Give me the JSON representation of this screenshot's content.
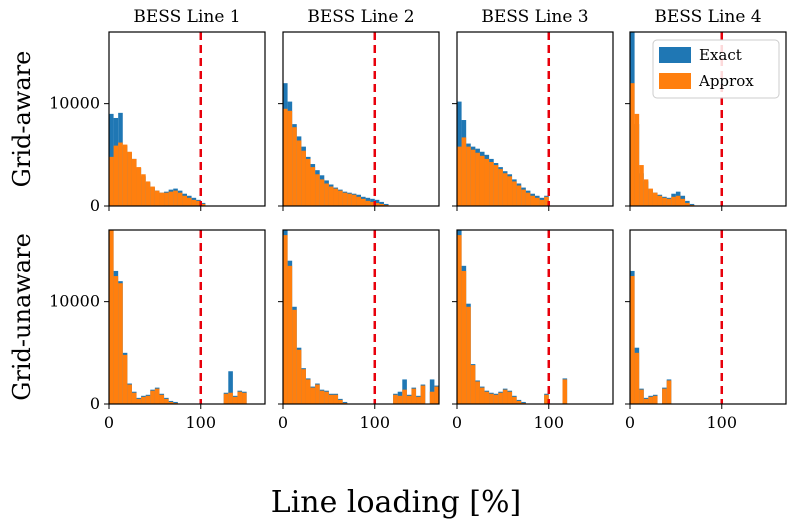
{
  "chart_data": {
    "type": "bar",
    "title": "",
    "xlabel": "Line loading [%]",
    "ylabel": "",
    "xlim": [
      0,
      170
    ],
    "ylim": [
      0,
      17000
    ],
    "x_ticks": [
      0,
      100
    ],
    "y_ticks": [
      0,
      10000
    ],
    "bin_width": 5,
    "threshold": 100,
    "colors": {
      "exact": "#1f77b4",
      "approx": "#ff7f0e",
      "threshold": "#e8000b"
    },
    "legend": {
      "placement": "top-right",
      "entries": [
        "Exact",
        "Approx"
      ]
    },
    "columns": [
      "BESS Line 1",
      "BESS Line 2",
      "BESS Line 3",
      "BESS Line 4"
    ],
    "rows": [
      "Grid-aware",
      "Grid-unaware"
    ],
    "panels": [
      {
        "row": "Grid-aware",
        "column": "BESS Line 1",
        "x": [
          0,
          5,
          10,
          15,
          20,
          25,
          30,
          35,
          40,
          45,
          50,
          55,
          60,
          65,
          70,
          75,
          80,
          85,
          90,
          95,
          100
        ],
        "exact": [
          9000,
          8600,
          9100,
          5900,
          5200,
          4600,
          3700,
          2900,
          2300,
          1800,
          1500,
          1300,
          1400,
          1600,
          1700,
          1500,
          1200,
          1000,
          800,
          600,
          300
        ],
        "approx": [
          4800,
          5900,
          6200,
          6000,
          5300,
          4600,
          3800,
          3100,
          2400,
          1900,
          1500,
          1300,
          1300,
          1400,
          1500,
          1300,
          1000,
          800,
          600,
          500,
          200
        ]
      },
      {
        "row": "Grid-aware",
        "column": "BESS Line 2",
        "x": [
          0,
          5,
          10,
          15,
          20,
          25,
          30,
          35,
          40,
          45,
          50,
          55,
          60,
          65,
          70,
          75,
          80,
          85,
          90,
          95,
          100,
          105,
          110
        ],
        "exact": [
          12000,
          10200,
          8000,
          6800,
          5800,
          4800,
          4100,
          3500,
          3000,
          2500,
          2100,
          1800,
          1600,
          1400,
          1300,
          1200,
          1100,
          900,
          800,
          700,
          600,
          400,
          200
        ],
        "approx": [
          9500,
          9300,
          7700,
          6400,
          5400,
          4600,
          3800,
          3100,
          2600,
          2200,
          1900,
          1700,
          1500,
          1300,
          1200,
          1100,
          900,
          700,
          500,
          400,
          300,
          200,
          100
        ]
      },
      {
        "row": "Grid-aware",
        "column": "BESS Line 3",
        "x": [
          0,
          5,
          10,
          15,
          20,
          25,
          30,
          35,
          40,
          45,
          50,
          55,
          60,
          65,
          70,
          75,
          80,
          85,
          90,
          95
        ],
        "exact": [
          10200,
          8400,
          6100,
          5800,
          5600,
          5300,
          5000,
          4600,
          4200,
          3800,
          3400,
          3100,
          2600,
          2200,
          1800,
          1500,
          1200,
          1000,
          800,
          1000
        ],
        "approx": [
          5800,
          6700,
          5800,
          5500,
          5200,
          4900,
          4600,
          4300,
          4000,
          3600,
          3200,
          2900,
          2400,
          2000,
          1600,
          1300,
          1000,
          800,
          600,
          900
        ]
      },
      {
        "row": "Grid-aware",
        "column": "BESS Line 4",
        "x": [
          0,
          5,
          10,
          15,
          20,
          25,
          30,
          35,
          40,
          45,
          50,
          55,
          60,
          65
        ],
        "exact": [
          17000,
          8000,
          3200,
          2400,
          1600,
          1300,
          1100,
          900,
          800,
          1200,
          1400,
          1000,
          500,
          200
        ],
        "approx": [
          12000,
          9000,
          4000,
          2600,
          1700,
          1300,
          1000,
          800,
          700,
          900,
          1000,
          700,
          300,
          100
        ]
      },
      {
        "row": "Grid-unaware",
        "column": "BESS Line 1",
        "x": [
          0,
          5,
          10,
          15,
          20,
          25,
          30,
          35,
          40,
          45,
          50,
          55,
          60,
          65,
          70,
          75,
          80,
          85,
          90,
          95,
          100,
          105,
          110,
          115,
          120,
          125,
          130,
          135,
          140,
          145
        ],
        "exact": [
          17000,
          13000,
          12000,
          5000,
          2000,
          1200,
          600,
          800,
          900,
          1400,
          1600,
          1000,
          600,
          300,
          200,
          0,
          0,
          0,
          0,
          0,
          0,
          0,
          0,
          0,
          0,
          1100,
          3200,
          800,
          1300,
          1200
        ],
        "approx": [
          17000,
          12500,
          11800,
          4800,
          1900,
          1100,
          500,
          700,
          800,
          1300,
          1500,
          900,
          500,
          200,
          100,
          0,
          0,
          0,
          0,
          0,
          0,
          0,
          0,
          0,
          0,
          1000,
          1100,
          700,
          1200,
          1100
        ]
      },
      {
        "row": "Grid-unaware",
        "column": "BESS Line 2",
        "x": [
          0,
          5,
          10,
          15,
          20,
          25,
          30,
          35,
          40,
          45,
          50,
          55,
          60,
          65,
          70,
          75,
          80,
          85,
          90,
          95,
          100,
          105,
          110,
          115,
          120,
          125,
          130,
          135,
          140,
          145,
          150,
          155,
          160,
          165
        ],
        "exact": [
          17000,
          14000,
          9500,
          5500,
          3500,
          2500,
          1700,
          2000,
          1400,
          1300,
          1000,
          1000,
          500,
          200,
          0,
          0,
          0,
          0,
          0,
          0,
          0,
          0,
          0,
          0,
          1000,
          1200,
          2400,
          900,
          1600,
          800,
          1900,
          0,
          2400,
          1800
        ],
        "approx": [
          16500,
          13500,
          9200,
          5300,
          3400,
          2400,
          1600,
          1900,
          1300,
          1200,
          900,
          900,
          400,
          100,
          0,
          0,
          0,
          0,
          0,
          0,
          0,
          0,
          0,
          0,
          900,
          800,
          1400,
          800,
          1500,
          700,
          1800,
          0,
          1200,
          1700
        ]
      },
      {
        "row": "Grid-unaware",
        "column": "BESS Line 3",
        "x": [
          0,
          5,
          10,
          15,
          20,
          25,
          30,
          35,
          40,
          45,
          50,
          55,
          60,
          65,
          70,
          75,
          80,
          85,
          90,
          95,
          100,
          105,
          110,
          115,
          120
        ],
        "exact": [
          17000,
          13500,
          9800,
          3900,
          2300,
          1700,
          1300,
          1100,
          1000,
          1200,
          1500,
          1300,
          800,
          400,
          200,
          0,
          0,
          0,
          0,
          1000,
          0,
          0,
          0,
          2500,
          0
        ],
        "approx": [
          16500,
          13000,
          9500,
          3800,
          2200,
          1600,
          1200,
          1000,
          900,
          1100,
          1400,
          1200,
          700,
          300,
          100,
          0,
          0,
          0,
          0,
          900,
          0,
          0,
          0,
          2400,
          0
        ]
      },
      {
        "row": "Grid-unaware",
        "column": "BESS Line 4",
        "x": [
          0,
          5,
          10,
          15,
          20,
          25,
          30,
          35,
          40,
          45
        ],
        "exact": [
          13000,
          5500,
          1500,
          600,
          800,
          900,
          0,
          1600,
          2400,
          0
        ],
        "approx": [
          12500,
          5000,
          1400,
          500,
          700,
          800,
          0,
          1500,
          2300,
          0
        ]
      }
    ]
  }
}
